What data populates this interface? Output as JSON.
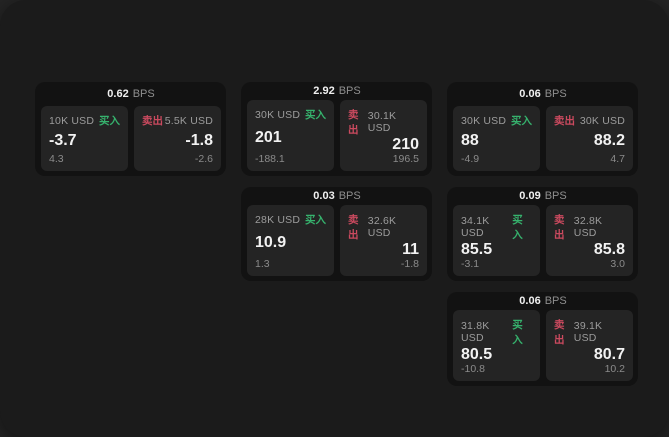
{
  "colors": {
    "window_background": "#1b1b1b",
    "card_background": "#121212",
    "panel_background": "#242424",
    "buy_green": "#36b26d",
    "sell_red": "#cb4a5f",
    "text_primary": "#f2f2f2",
    "text_muted": "#8f8f8f"
  },
  "cards": [
    {
      "bps_value": "0.62",
      "bps_unit": "BPS",
      "buy": {
        "amount": "10K USD",
        "side_label": "买入",
        "price": "-3.7",
        "delta": "4.3"
      },
      "sell": {
        "side_label": "卖出",
        "amount": "5.5K USD",
        "price": "-1.8",
        "delta": "-2.6"
      },
      "grid": {
        "row": 1,
        "col": 1
      }
    },
    {
      "bps_value": "2.92",
      "bps_unit": "BPS",
      "buy": {
        "amount": "30K USD",
        "side_label": "买入",
        "price": "201",
        "delta": "-188.1"
      },
      "sell": {
        "side_label": "卖出",
        "amount": "30.1K USD",
        "price": "210",
        "delta": "196.5"
      },
      "grid": {
        "row": 1,
        "col": 2
      }
    },
    {
      "bps_value": "0.06",
      "bps_unit": "BPS",
      "buy": {
        "amount": "30K USD",
        "side_label": "买入",
        "price": "88",
        "delta": "-4.9"
      },
      "sell": {
        "side_label": "卖出",
        "amount": "30K USD",
        "price": "88.2",
        "delta": "4.7"
      },
      "grid": {
        "row": 1,
        "col": 3
      }
    },
    {
      "bps_value": "0.03",
      "bps_unit": "BPS",
      "buy": {
        "amount": "28K USD",
        "side_label": "买入",
        "price": "10.9",
        "delta": "1.3"
      },
      "sell": {
        "side_label": "卖出",
        "amount": "32.6K USD",
        "price": "11",
        "delta": "-1.8"
      },
      "grid": {
        "row": 2,
        "col": 2
      }
    },
    {
      "bps_value": "0.09",
      "bps_unit": "BPS",
      "buy": {
        "amount": "34.1K USD",
        "side_label": "买入",
        "price": "85.5",
        "delta": "-3.1"
      },
      "sell": {
        "side_label": "卖出",
        "amount": "32.8K USD",
        "price": "85.8",
        "delta": "3.0"
      },
      "grid": {
        "row": 2,
        "col": 3
      }
    },
    {
      "bps_value": "0.06",
      "bps_unit": "BPS",
      "buy": {
        "amount": "31.8K USD",
        "side_label": "买入",
        "price": "80.5",
        "delta": "-10.8"
      },
      "sell": {
        "side_label": "卖出",
        "amount": "39.1K USD",
        "price": "80.7",
        "delta": "10.2"
      },
      "grid": {
        "row": 3,
        "col": 3
      }
    }
  ]
}
